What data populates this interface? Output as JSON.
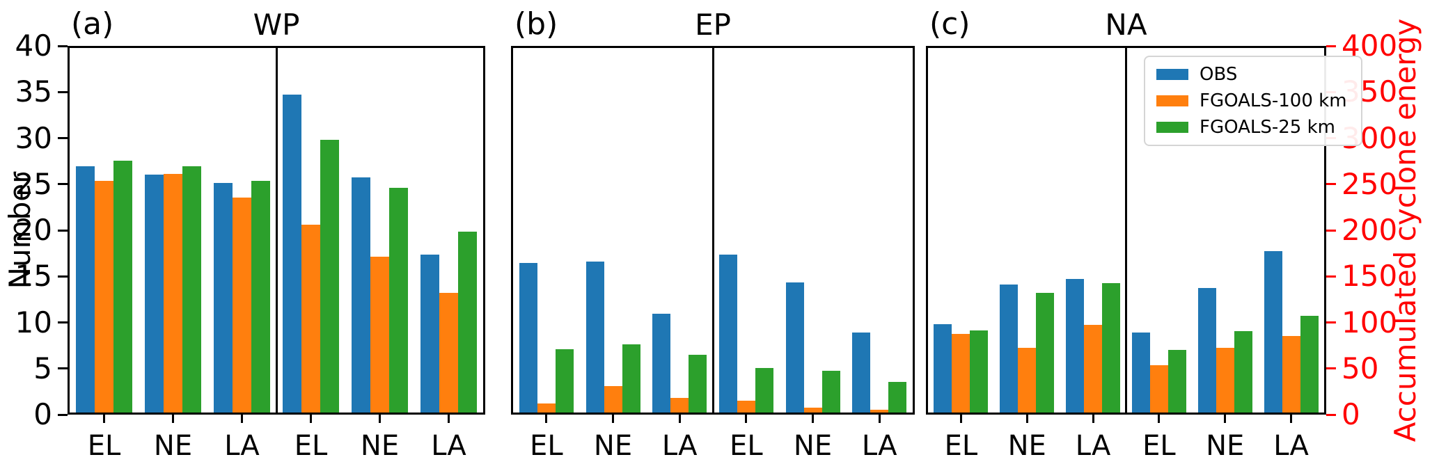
{
  "figure": {
    "left_axis": {
      "label": "Number",
      "range": [
        0,
        40
      ],
      "ticks": [
        0,
        5,
        10,
        15,
        20,
        25,
        30,
        35,
        40
      ]
    },
    "right_axis": {
      "label": "Accumulated cyclone energy",
      "range": [
        0,
        400
      ],
      "ticks": [
        0,
        50,
        100,
        150,
        200,
        250,
        300,
        350,
        400
      ],
      "color": "#ff0000"
    },
    "legend": {
      "position": "top-right-of-panel-c",
      "items": [
        {
          "label": "OBS",
          "color": "#1f77b4"
        },
        {
          "label": "FGOALS-100 km",
          "color": "#ff7f0e"
        },
        {
          "label": "FGOALS-25 km",
          "color": "#2ca02c"
        }
      ]
    }
  },
  "chart_data": [
    {
      "type": "bar",
      "panel_label": "(a)",
      "title": "WP",
      "categories": [
        "EL",
        "NE",
        "LA"
      ],
      "left_half_axis": "Number",
      "right_half_axis": "Accumulated cyclone energy",
      "number": {
        "series": [
          {
            "name": "OBS",
            "values": [
              26.7,
              25.8,
              24.9
            ]
          },
          {
            "name": "FGOALS-100 km",
            "values": [
              25.1,
              25.9,
              23.3
            ]
          },
          {
            "name": "FGOALS-25 km",
            "values": [
              27.3,
              26.7,
              25.1
            ]
          }
        ]
      },
      "ace": {
        "series": [
          {
            "name": "OBS",
            "values": [
              345,
              255,
              171
            ]
          },
          {
            "name": "FGOALS-100 km",
            "values": [
              204,
              169,
              130
            ]
          },
          {
            "name": "FGOALS-25 km",
            "values": [
              296,
              244,
              196
            ]
          }
        ]
      }
    },
    {
      "type": "bar",
      "panel_label": "(b)",
      "title": "EP",
      "categories": [
        "EL",
        "NE",
        "LA"
      ],
      "left_half_axis": "Number",
      "right_half_axis": "Accumulated cyclone energy",
      "number": {
        "series": [
          {
            "name": "OBS",
            "values": [
              16.2,
              16.4,
              10.7
            ]
          },
          {
            "name": "FGOALS-100 km",
            "values": [
              1.0,
              2.9,
              1.6
            ]
          },
          {
            "name": "FGOALS-25 km",
            "values": [
              6.9,
              7.4,
              6.3
            ]
          }
        ]
      },
      "ace": {
        "series": [
          {
            "name": "OBS",
            "values": [
              171,
              141,
              87
            ]
          },
          {
            "name": "FGOALS-100 km",
            "values": [
              13,
              5,
              3
            ]
          },
          {
            "name": "FGOALS-25 km",
            "values": [
              48,
              45,
              33
            ]
          }
        ]
      }
    },
    {
      "type": "bar",
      "panel_label": "(c)",
      "title": "NA",
      "categories": [
        "EL",
        "NE",
        "LA"
      ],
      "left_half_axis": "Number",
      "right_half_axis": "Accumulated cyclone energy",
      "number": {
        "series": [
          {
            "name": "OBS",
            "values": [
              9.6,
              13.9,
              14.5
            ]
          },
          {
            "name": "FGOALS-100 km",
            "values": [
              8.5,
              7.0,
              9.5
            ]
          },
          {
            "name": "FGOALS-25 km",
            "values": [
              8.9,
              13.0,
              14.0
            ]
          }
        ]
      },
      "ace": {
        "series": [
          {
            "name": "OBS",
            "values": [
              87,
              135,
              175
            ]
          },
          {
            "name": "FGOALS-100 km",
            "values": [
              51,
              70,
              83
            ]
          },
          {
            "name": "FGOALS-25 km",
            "values": [
              68,
              88,
              105
            ]
          }
        ]
      }
    }
  ]
}
